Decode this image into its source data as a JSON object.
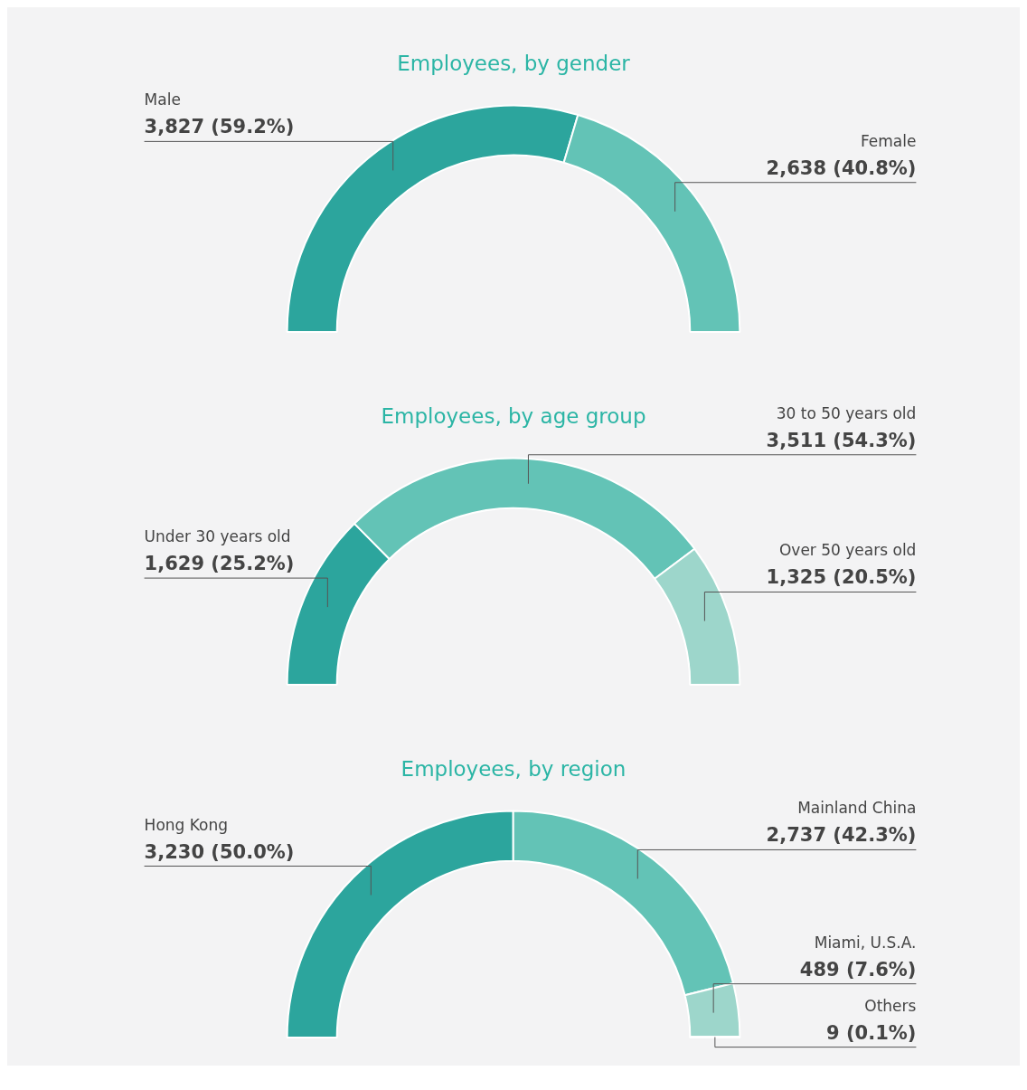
{
  "chart_data": [
    {
      "type": "donut",
      "title": "Employees, by gender",
      "categories": [
        "Male",
        "Female"
      ],
      "values": [
        3827,
        2638
      ],
      "value_labels": [
        "3,827 (59.2%)",
        "2,638 (40.8%)"
      ],
      "colors": [
        "#2ca59d",
        "#63c3b6"
      ]
    },
    {
      "type": "donut",
      "title": "Employees, by age group",
      "categories": [
        "Under 30 years old",
        "30 to 50 years old",
        "Over 50 years old"
      ],
      "values": [
        1629,
        3511,
        1325
      ],
      "value_labels": [
        "1,629 (25.2%)",
        "3,511 (54.3%)",
        "1,325 (20.5%)"
      ],
      "colors": [
        "#2ca59d",
        "#63c3b6",
        "#9dd6cb"
      ]
    },
    {
      "type": "donut",
      "title": "Employees, by region",
      "categories": [
        "Hong Kong",
        "Mainland China",
        "Miami, U.S.A.",
        "Others"
      ],
      "values": [
        3230,
        2737,
        489,
        9
      ],
      "value_labels": [
        "3,230 (50.0%)",
        "2,737 (42.3%)",
        "489 (7.6%)",
        "9 (0.1%)"
      ],
      "colors": [
        "#2ca59d",
        "#63c3b6",
        "#9dd6cb",
        "#9dd6cb"
      ]
    }
  ]
}
